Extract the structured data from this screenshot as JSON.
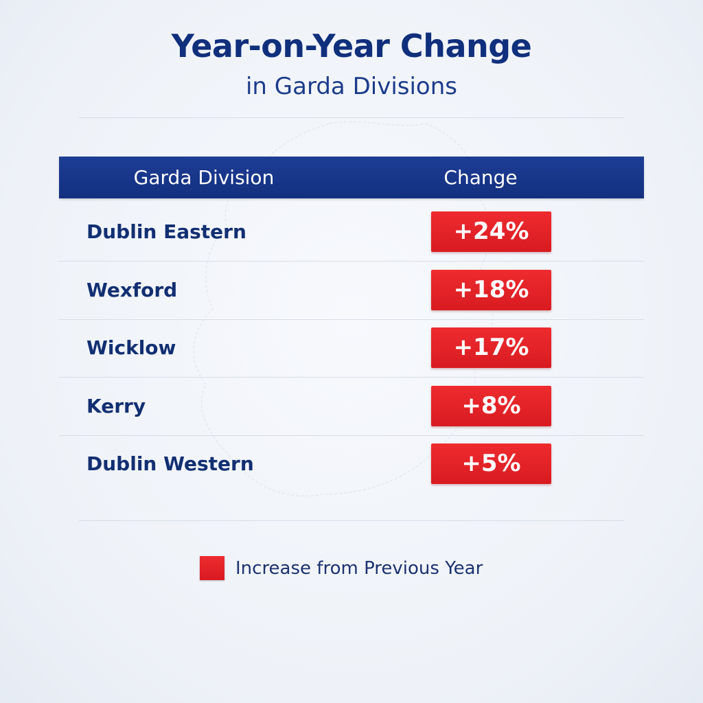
{
  "chart_data": {
    "type": "table",
    "title": "Year-on-Year Change",
    "subtitle": "in Garda Divisions",
    "columns": [
      "Garda Division",
      "Change"
    ],
    "categories": [
      "Dublin Eastern",
      "Wexford",
      "Wicklow",
      "Kerry",
      "Dublin Western"
    ],
    "values": [
      24,
      18,
      17,
      8,
      5
    ],
    "value_labels": [
      "+24%",
      "+18%",
      "+17%",
      "+8%",
      "+5%"
    ],
    "unit": "%",
    "legend": {
      "label": "Increase from Previous Year",
      "color": "#e3242b",
      "position": "bottom"
    },
    "colors": {
      "header": "#173585",
      "title": "#102f7c",
      "increase": "#e3242b"
    }
  }
}
